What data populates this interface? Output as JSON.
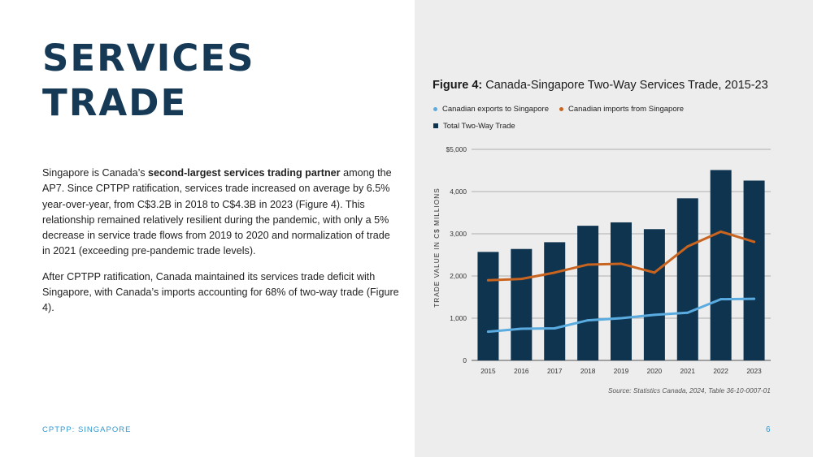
{
  "page": {
    "title_line1": "SERVICES",
    "title_line2": "TRADE",
    "footer_left": "CPTPP: SINGAPORE",
    "page_number": "6",
    "para1": [
      "Singapore is Canada’s ",
      "second-largest services trading partner",
      " among the AP7. Since CPTPP ratification, services trade increased on average by 6.5% year-over-year, from C$3.2B in 2018 to C$4.3B in 2023 (Figure 4). This relationship remained relatively resilient during the pandemic, with only a 5% decrease in service trade flows from 2019 to 2020 and normalization of trade in 2021 (exceeding pre-pandemic trade levels)."
    ],
    "para2": "After CPTPP ratification, Canada maintained its services trade deficit with Singapore, with Canada’s imports accounting for 68% of two-way trade (Figure 4)."
  },
  "colors": {
    "title": "#163a56",
    "accent": "#2e9ad3",
    "bars": "#0f3450",
    "exports_line": "#5aace0",
    "imports_line": "#c8641f",
    "panel_bg": "#ededed"
  },
  "chart_data": {
    "type": "bar",
    "figure_label": "Figure 4:",
    "title": "Canada-Singapore Two-Way Services Trade, 2015-23",
    "ylabel": "TRADE VALUE IN C$ MILLIONS",
    "xlabel": "",
    "categories": [
      "2015",
      "2016",
      "2017",
      "2018",
      "2019",
      "2020",
      "2021",
      "2022",
      "2023"
    ],
    "ylim": [
      0,
      5000
    ],
    "yticks": [
      0,
      1000,
      2000,
      3000,
      4000,
      5000
    ],
    "ytick_labels": [
      "0",
      "1,000",
      "2,000",
      "3,000",
      "4,000",
      "$5,000"
    ],
    "grid": true,
    "legend_position": "top-left",
    "series": [
      {
        "name": "Total Two-Way Trade",
        "type": "bar",
        "values": [
          2570,
          2640,
          2800,
          3190,
          3270,
          3110,
          3840,
          4510,
          4260
        ]
      },
      {
        "name": "Canadian exports to Singapore",
        "type": "line",
        "values": [
          680,
          750,
          760,
          950,
          1000,
          1080,
          1130,
          1450,
          1460
        ]
      },
      {
        "name": "Canadian imports from Singapore",
        "type": "line",
        "values": [
          1900,
          1930,
          2080,
          2270,
          2290,
          2080,
          2700,
          3050,
          2810
        ]
      }
    ],
    "source": "Source: Statistics Canada, 2024, Table 36-10-0007-01"
  }
}
